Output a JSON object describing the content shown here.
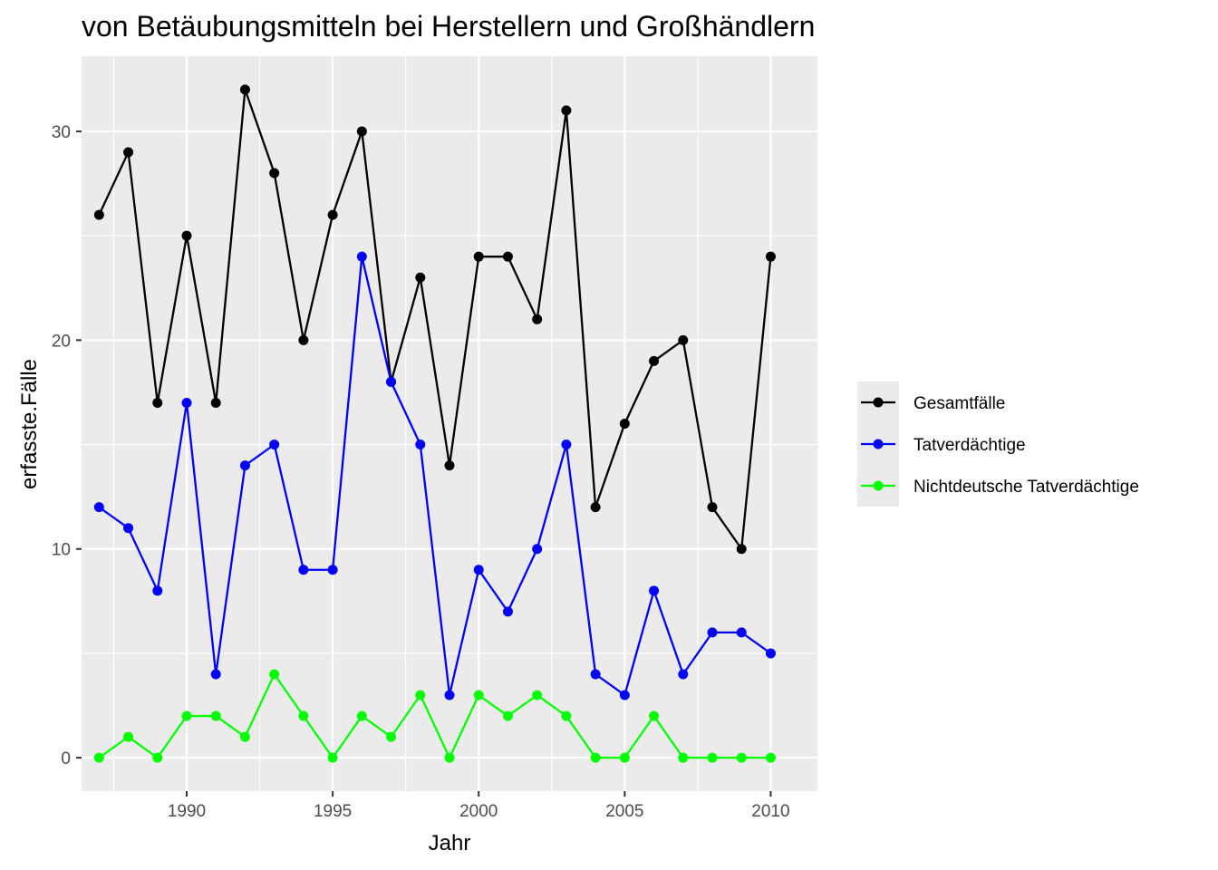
{
  "chart_data": {
    "type": "line",
    "title": "von Betäubungsmitteln bei Herstellern und Großhändlern",
    "xlabel": "Jahr",
    "ylabel": "erfasste.Fälle",
    "x": [
      1987,
      1988,
      1989,
      1990,
      1991,
      1992,
      1993,
      1994,
      1995,
      1996,
      1997,
      1998,
      1999,
      2000,
      2001,
      2002,
      2003,
      2004,
      2005,
      2006,
      2007,
      2008,
      2009,
      2010
    ],
    "xlim": [
      1986.4,
      2011.6
    ],
    "ylim": [
      -1.6,
      33.6
    ],
    "x_ticks": [
      1990,
      1995,
      2000,
      2005,
      2010
    ],
    "y_ticks": [
      0,
      10,
      20,
      30
    ],
    "grid": true,
    "legend_position": "right",
    "series": [
      {
        "name": "Gesamtfälle",
        "color": "#000000",
        "values": [
          26,
          29,
          17,
          25,
          17,
          32,
          28,
          20,
          26,
          30,
          18,
          23,
          14,
          24,
          24,
          21,
          31,
          12,
          16,
          19,
          20,
          12,
          10,
          24
        ]
      },
      {
        "name": "Tatverdächtige",
        "color": "#0000ff",
        "values": [
          12,
          11,
          8,
          17,
          4,
          14,
          15,
          9,
          9,
          24,
          18,
          15,
          3,
          9,
          7,
          10,
          15,
          4,
          3,
          8,
          4,
          6,
          6,
          5
        ]
      },
      {
        "name": "Nichtdeutsche Tatverdächtige",
        "color": "#00ff00",
        "values": [
          0,
          1,
          0,
          2,
          2,
          1,
          4,
          2,
          0,
          2,
          1,
          3,
          0,
          3,
          2,
          3,
          2,
          0,
          0,
          2,
          0,
          0,
          0,
          0
        ]
      }
    ]
  }
}
